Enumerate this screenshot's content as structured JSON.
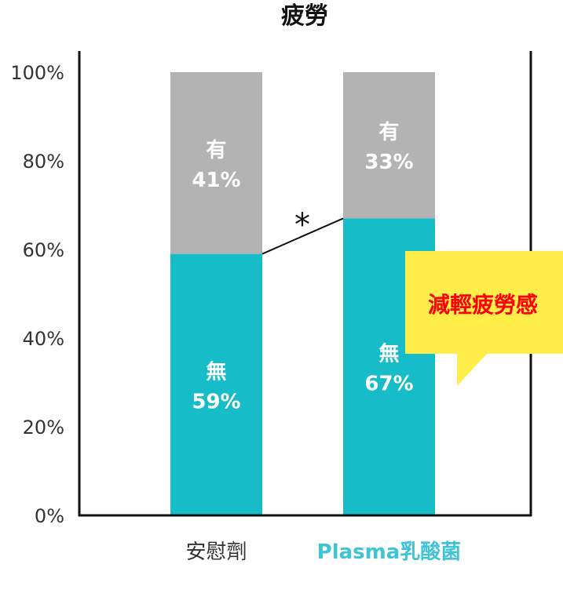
{
  "chart_data": {
    "type": "bar",
    "stacked": true,
    "percent": true,
    "title": "疲勞",
    "categories": [
      "安慰劑",
      "Plasma乳酸菌"
    ],
    "category_colors": [
      "#333333",
      "#3fc3d6"
    ],
    "series": [
      {
        "name": "無",
        "values": [
          59,
          67
        ],
        "color": "#16bdc8"
      },
      {
        "name": "有",
        "values": [
          41,
          33
        ],
        "color": "#b3b3b3"
      }
    ],
    "data_labels": [
      [
        "59%",
        "67%"
      ],
      [
        "41%",
        "33%"
      ]
    ],
    "yticks": [
      "0%",
      "20%",
      "40%",
      "60%",
      "80%",
      "100%"
    ],
    "ylim": [
      0,
      100
    ],
    "grid": false,
    "significance": "*",
    "callout": {
      "text": "減輕疲勞感",
      "bg": "#ffed4a",
      "color": "#ff0000"
    }
  }
}
